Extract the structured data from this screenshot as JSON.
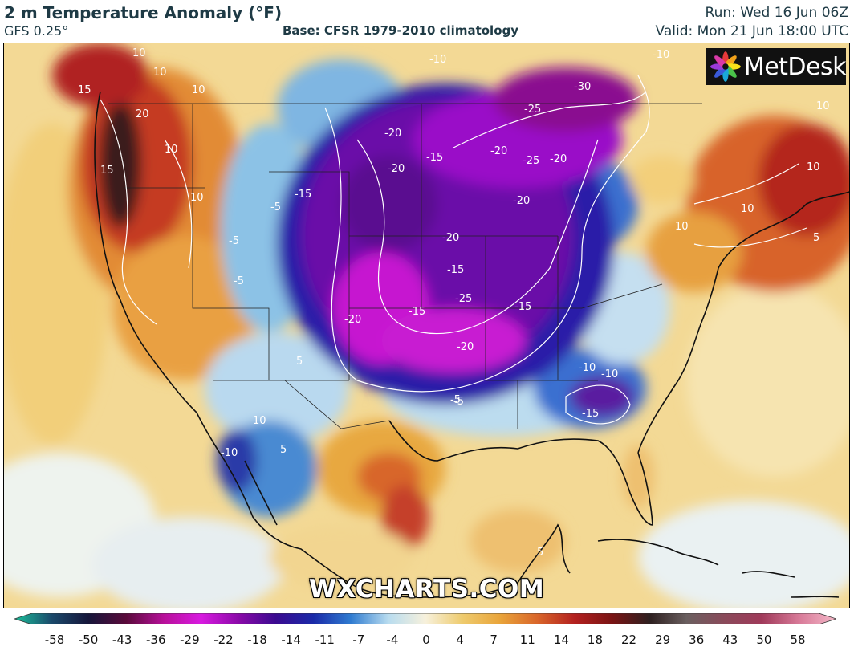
{
  "header": {
    "title": "2 m Temperature Anomaly (°F)",
    "model": "GFS 0.25°",
    "base": "Base: CFSR 1979-2010 climatology",
    "run": "Run: Wed 16 Jun 06Z",
    "valid": "Valid: Mon 21 Jun 18:00 UTC"
  },
  "logo": {
    "text": "MetDesk"
  },
  "watermark": "WXCHARTS.COM",
  "colorbar": {
    "ticks": [
      "-58",
      "-50",
      "-43",
      "-36",
      "-29",
      "-22",
      "-18",
      "-14",
      "-11",
      "-7",
      "-4",
      "0",
      "4",
      "7",
      "11",
      "14",
      "18",
      "22",
      "29",
      "36",
      "43",
      "50",
      "58"
    ],
    "colors": [
      "#1bbf9a",
      "#1b4a6b",
      "#16163a",
      "#5a0a3a",
      "#b8109a",
      "#d81ae0",
      "#8a0aa8",
      "#3a0a90",
      "#1a2aa8",
      "#2f7bd0",
      "#b8dcef",
      "#f7f1dc",
      "#eecb6e",
      "#e9a43a",
      "#d9662a",
      "#b3201f",
      "#7a1414",
      "#2e2020",
      "#6a5f5f",
      "#8a4a5a",
      "#a03a5a",
      "#d87a98",
      "#f4b8c8"
    ]
  },
  "map_labels": [
    {
      "text": "10"
    },
    {
      "text": "10"
    },
    {
      "text": "15"
    },
    {
      "text": "20"
    },
    {
      "text": "10"
    },
    {
      "text": "10"
    },
    {
      "text": "15"
    },
    {
      "text": "10"
    },
    {
      "text": "-20"
    },
    {
      "text": "-15"
    },
    {
      "text": "-20"
    },
    {
      "text": "-20"
    },
    {
      "text": "-15"
    },
    {
      "text": "-15"
    },
    {
      "text": "-20"
    },
    {
      "text": "-25"
    },
    {
      "text": "-20"
    },
    {
      "text": "-25"
    },
    {
      "text": "-30"
    },
    {
      "text": "-10"
    },
    {
      "text": "-10"
    },
    {
      "text": "-20"
    },
    {
      "text": "-15"
    },
    {
      "text": "-25"
    },
    {
      "text": "-20"
    },
    {
      "text": "-15"
    },
    {
      "text": "-20"
    },
    {
      "text": "-10"
    },
    {
      "text": "-10"
    },
    {
      "text": "-15"
    },
    {
      "text": "-5"
    },
    {
      "text": "-5"
    },
    {
      "text": "-5"
    },
    {
      "text": "-10"
    },
    {
      "text": "10"
    },
    {
      "text": "-5"
    },
    {
      "text": "5"
    },
    {
      "text": "5"
    },
    {
      "text": "5"
    },
    {
      "text": "10"
    },
    {
      "text": "10"
    },
    {
      "text": "10"
    },
    {
      "text": "10"
    },
    {
      "text": "5"
    },
    {
      "text": "-5"
    }
  ]
}
